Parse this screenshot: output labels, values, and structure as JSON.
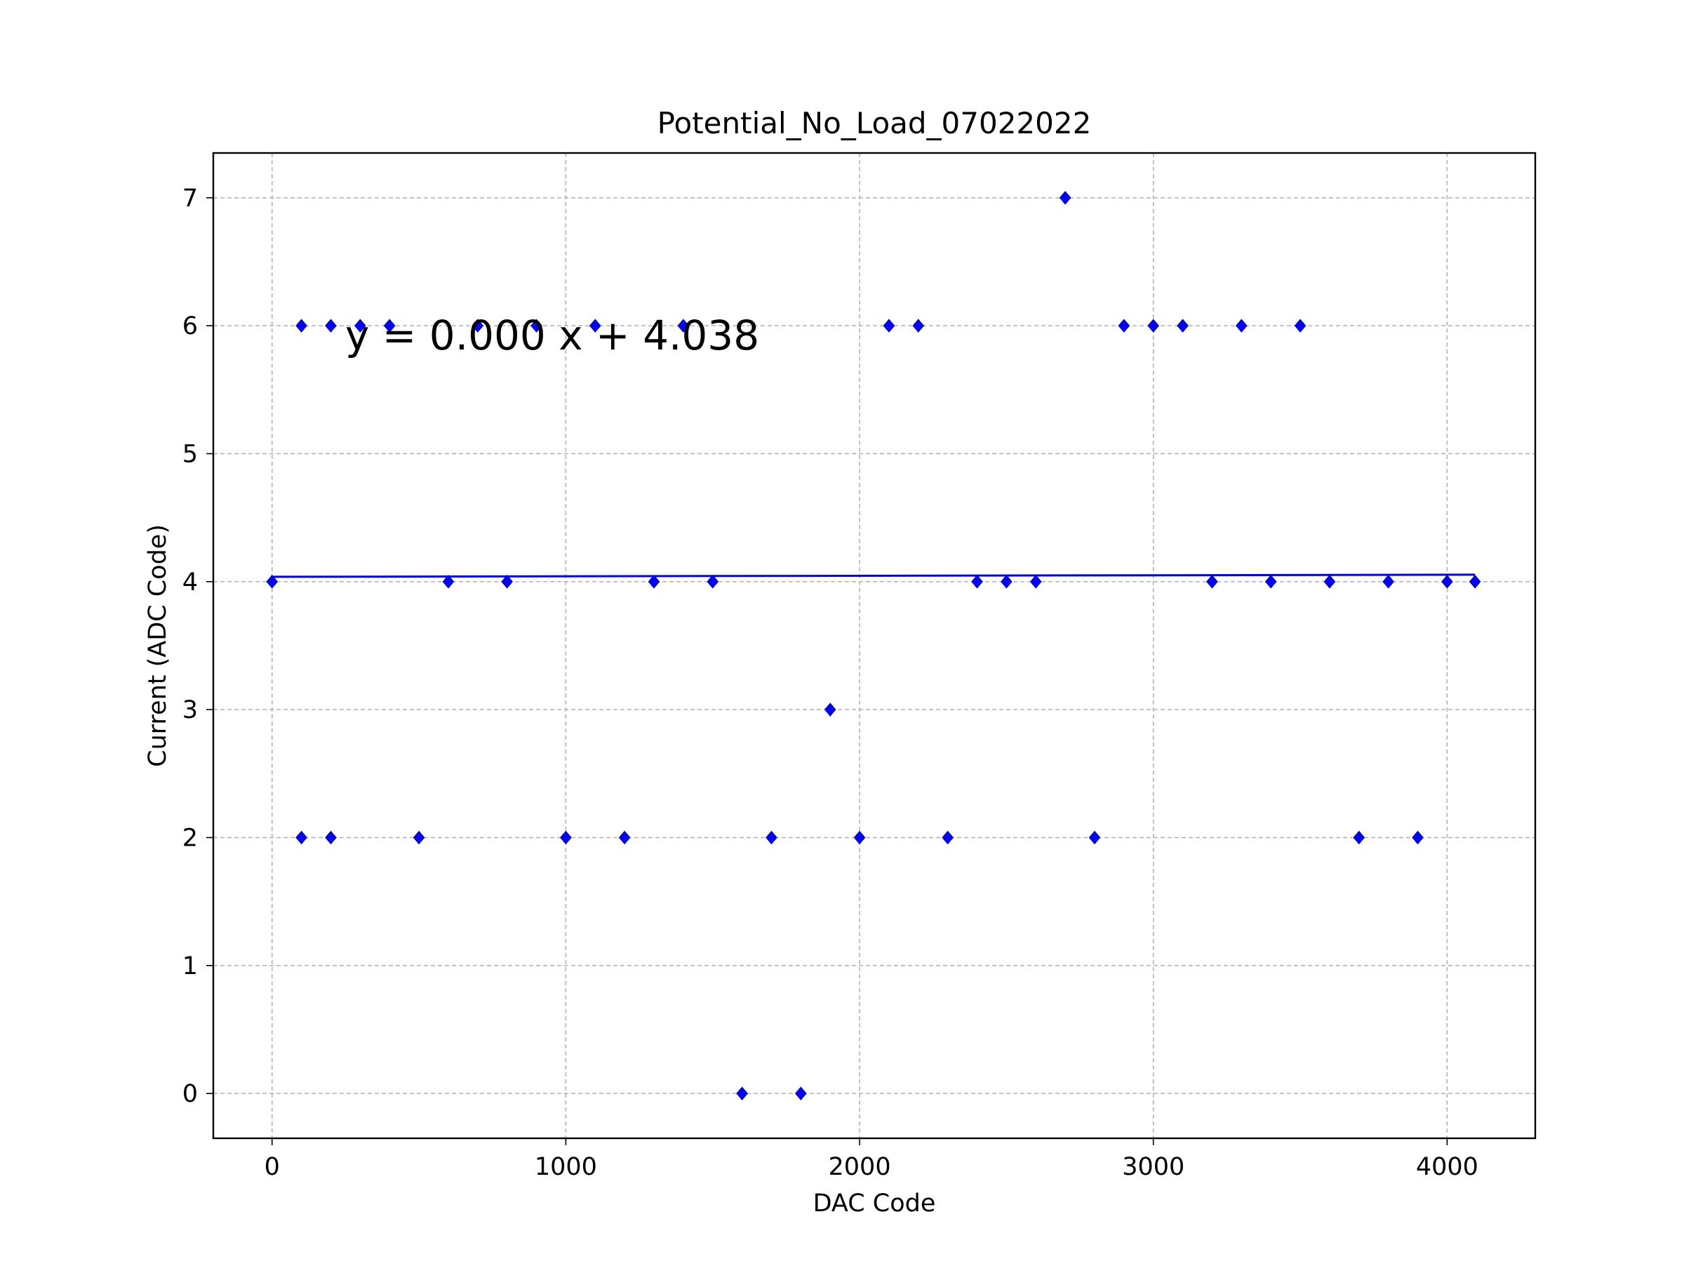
{
  "chart_data": {
    "type": "scatter",
    "title": "Potential_No_Load_07022022",
    "xlabel": "DAC Code",
    "ylabel": "Current (ADC Code)",
    "xlim": [
      -200,
      4300
    ],
    "ylim": [
      -0.35,
      7.35
    ],
    "xticks": [
      0,
      1000,
      2000,
      3000,
      4000
    ],
    "xtick_labels": [
      "0",
      "1000",
      "2000",
      "3000",
      "4000"
    ],
    "yticks": [
      0,
      1,
      2,
      3,
      4,
      5,
      6,
      7
    ],
    "ytick_labels": [
      "0",
      "1",
      "2",
      "3",
      "4",
      "5",
      "6",
      "7"
    ],
    "grid": true,
    "marker": "diamond",
    "color": "#0000ff",
    "series": [
      {
        "x": [
          0,
          100,
          100,
          200,
          200,
          300,
          400,
          500,
          600,
          700,
          800,
          900,
          1000,
          1100,
          1200,
          1300,
          1400,
          1500,
          1600,
          1700,
          1800,
          1900,
          2000,
          2100,
          2200,
          2300,
          2400,
          2500,
          2600,
          2700,
          2800,
          2900,
          3000,
          3100,
          3200,
          3300,
          3400,
          3500,
          3600,
          3700,
          3800,
          3900,
          4000,
          4095
        ],
        "y": [
          4,
          6,
          2,
          6,
          2,
          6,
          6,
          2,
          4,
          6,
          4,
          6,
          2,
          6,
          2,
          4,
          6,
          4,
          0,
          2,
          0,
          3,
          2,
          6,
          6,
          2,
          4,
          4,
          4,
          7,
          2,
          6,
          6,
          6,
          4,
          6,
          4,
          6,
          4,
          2,
          4,
          2,
          4,
          4
        ]
      }
    ],
    "fit_line": {
      "slope": 4e-06,
      "intercept": 4.038,
      "x_range": [
        0,
        4095
      ]
    },
    "annotation": "y = 0.000 x + 4.038"
  }
}
